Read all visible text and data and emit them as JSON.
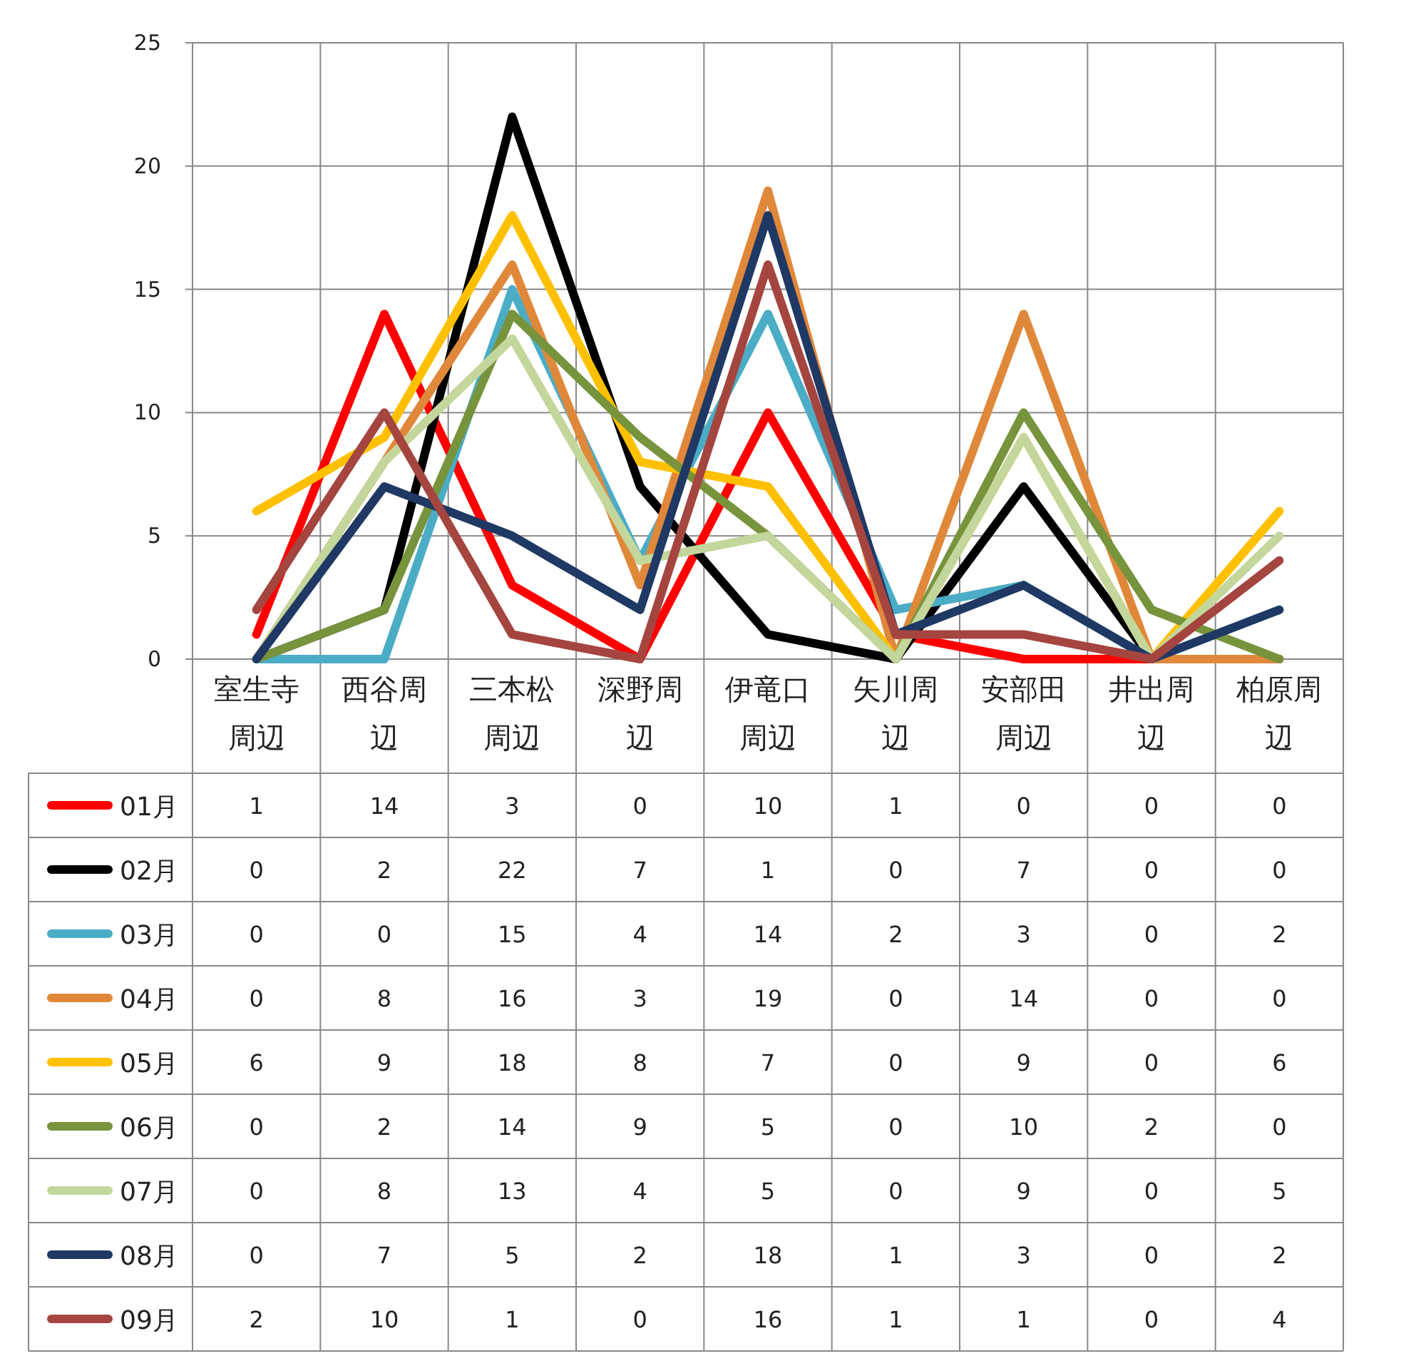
{
  "chart_data": {
    "type": "line",
    "categories": [
      "室生寺周辺",
      "西谷周辺",
      "三本松周辺",
      "深野周辺",
      "伊竜口周辺",
      "矢川周辺",
      "安部田周辺",
      "井出周辺",
      "柏原周辺"
    ],
    "series": [
      {
        "name": "01月",
        "color": "#ff0000",
        "values": [
          1,
          14,
          3,
          0,
          10,
          1,
          0,
          0,
          0
        ]
      },
      {
        "name": "02月",
        "color": "#000000",
        "values": [
          0,
          2,
          22,
          7,
          1,
          0,
          7,
          0,
          0
        ]
      },
      {
        "name": "03月",
        "color": "#4bacc6",
        "values": [
          0,
          0,
          15,
          4,
          14,
          2,
          3,
          0,
          2
        ]
      },
      {
        "name": "04月",
        "color": "#e0883a",
        "values": [
          0,
          8,
          16,
          3,
          19,
          0,
          14,
          0,
          0
        ]
      },
      {
        "name": "05月",
        "color": "#ffc000",
        "values": [
          6,
          9,
          18,
          8,
          7,
          0,
          9,
          0,
          6
        ]
      },
      {
        "name": "06月",
        "color": "#77933c",
        "values": [
          0,
          2,
          14,
          9,
          5,
          0,
          10,
          2,
          0
        ]
      },
      {
        "name": "07月",
        "color": "#c3d69b",
        "values": [
          0,
          8,
          13,
          4,
          5,
          0,
          9,
          0,
          5
        ]
      },
      {
        "name": "08月",
        "color": "#1f3864",
        "values": [
          0,
          7,
          5,
          2,
          18,
          1,
          3,
          0,
          2
        ]
      },
      {
        "name": "09月",
        "color": "#a5453f",
        "values": [
          2,
          10,
          1,
          0,
          16,
          1,
          1,
          0,
          4
        ]
      }
    ],
    "ylim": [
      0,
      25
    ],
    "yticks": [
      0,
      5,
      10,
      15,
      20,
      25
    ],
    "grid": true,
    "data_labels": true,
    "legend": "bottom",
    "marker": "none",
    "line_style": "solid"
  }
}
